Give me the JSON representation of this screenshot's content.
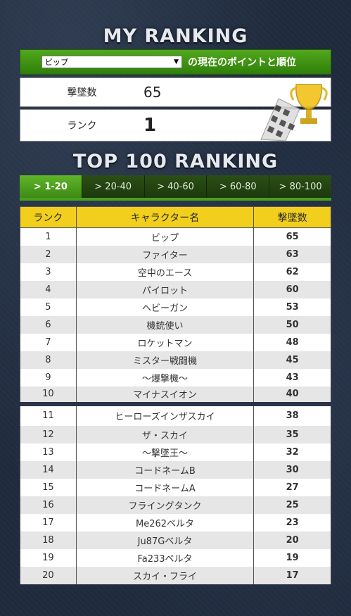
{
  "my_ranking": {
    "title": "MY RANKING",
    "selected_character": "ビップ",
    "bar_caption": "の現在のポイントと順位",
    "kills_label": "撃墜数",
    "kills_value": "65",
    "rank_label": "ランク",
    "rank_value": "1"
  },
  "top_ranking": {
    "title": "TOP 100 RANKING",
    "tabs": [
      "> 1-20",
      "> 20-40",
      "> 40-60",
      "> 60-80",
      "> 80-100"
    ],
    "active_tab": 0,
    "headers": [
      "ランク",
      "キャラクター名",
      "撃墜数"
    ],
    "rows": [
      {
        "rank": "1",
        "name": "ビップ",
        "kills": "65"
      },
      {
        "rank": "2",
        "name": "ファイター",
        "kills": "63"
      },
      {
        "rank": "3",
        "name": "空中のエース",
        "kills": "62"
      },
      {
        "rank": "4",
        "name": "パイロット",
        "kills": "60"
      },
      {
        "rank": "5",
        "name": "ヘビーガン",
        "kills": "53"
      },
      {
        "rank": "6",
        "name": "機銃使い",
        "kills": "50"
      },
      {
        "rank": "7",
        "name": "ロケットマン",
        "kills": "48"
      },
      {
        "rank": "8",
        "name": "ミスター戦闘機",
        "kills": "45"
      },
      {
        "rank": "9",
        "name": "～爆撃機～",
        "kills": "43"
      },
      {
        "rank": "10",
        "name": "マイナスイオン",
        "kills": "40"
      },
      {
        "rank": "11",
        "name": "ヒーローズインザスカイ",
        "kills": "38"
      },
      {
        "rank": "12",
        "name": "ザ・スカイ",
        "kills": "35"
      },
      {
        "rank": "13",
        "name": "～撃墜王～",
        "kills": "32"
      },
      {
        "rank": "14",
        "name": "コードネームB",
        "kills": "30"
      },
      {
        "rank": "15",
        "name": "コードネームA",
        "kills": "27"
      },
      {
        "rank": "16",
        "name": "フライングタンク",
        "kills": "25"
      },
      {
        "rank": "17",
        "name": "Me262ベルタ",
        "kills": "23"
      },
      {
        "rank": "18",
        "name": "Ju87Gベルタ",
        "kills": "20"
      },
      {
        "rank": "19",
        "name": "Fa233ベルタ",
        "kills": "19"
      },
      {
        "rank": "20",
        "name": "スカイ・フライ",
        "kills": "17"
      }
    ]
  },
  "icons": {
    "trophy": "trophy-checkered-flag-icon",
    "dropdown": "dropdown-arrow-icon"
  },
  "colors": {
    "accent_green": "#3d8a14",
    "header_yellow": "#f2cf1c",
    "background": "#1f2a3d"
  }
}
